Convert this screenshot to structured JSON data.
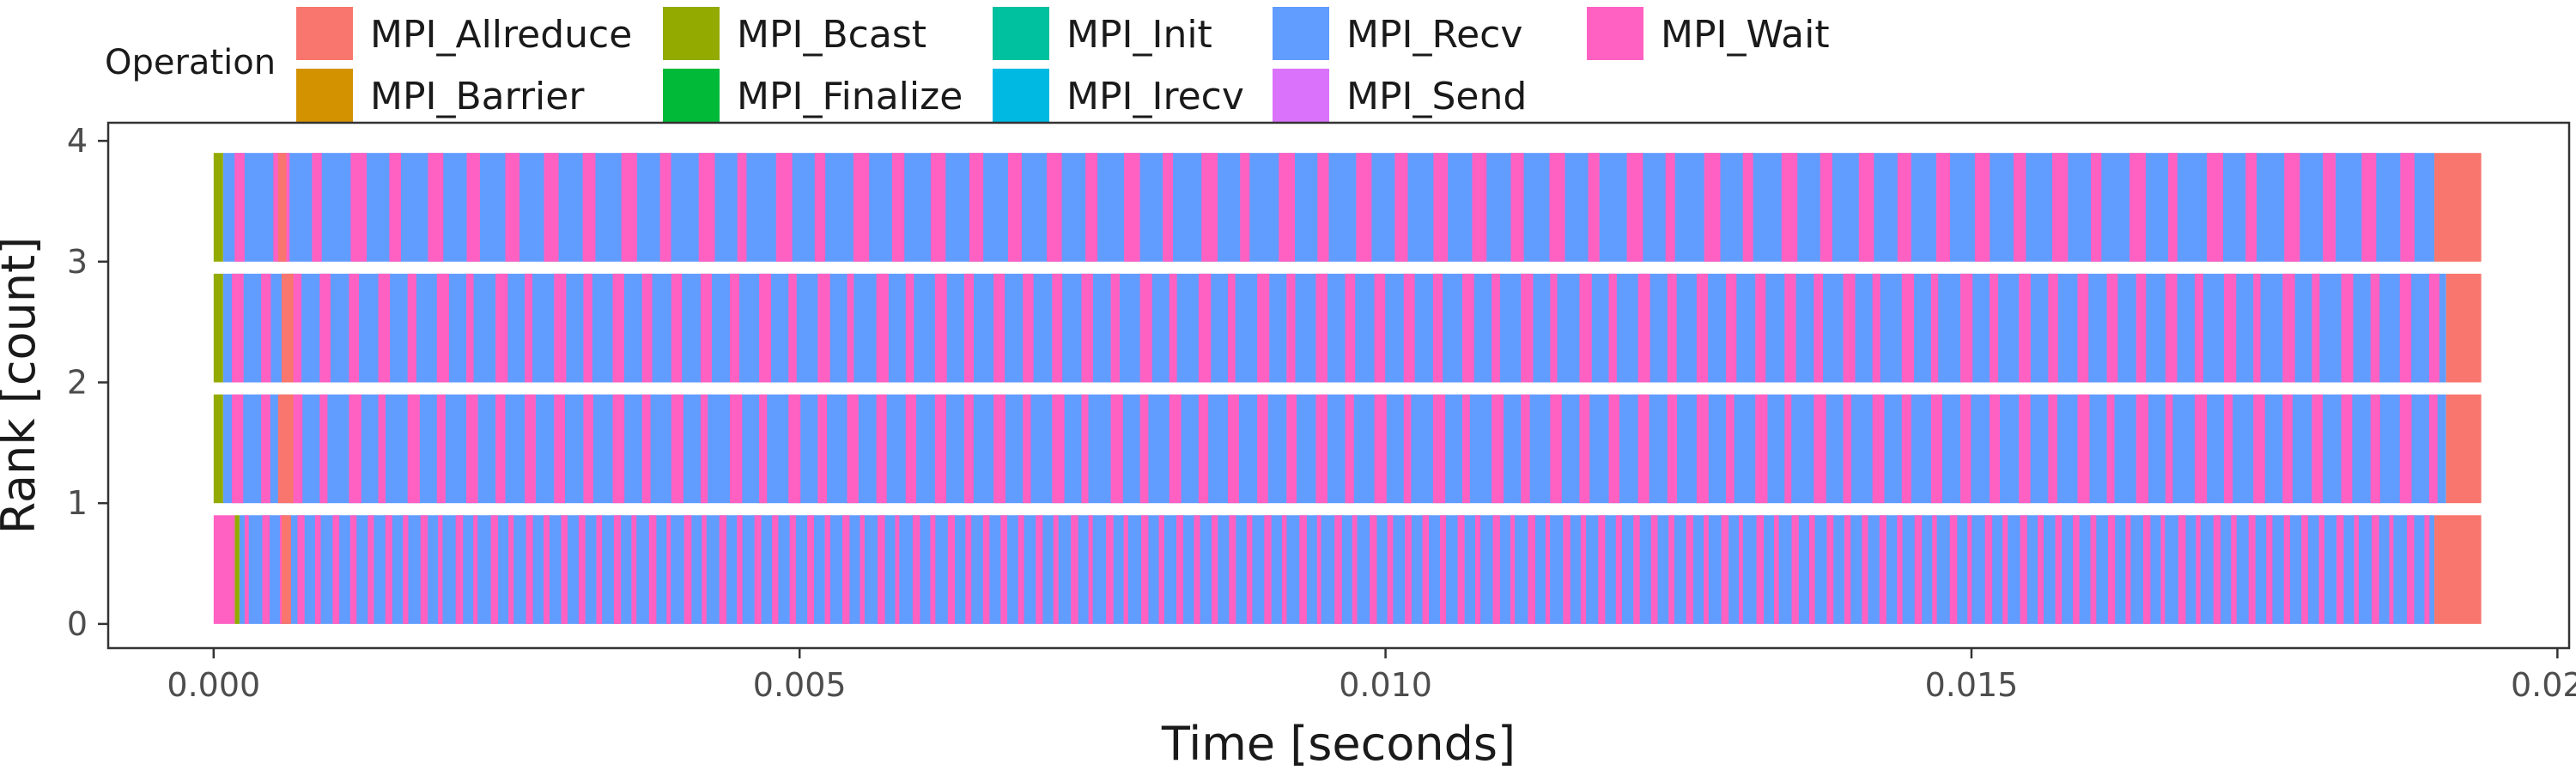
{
  "chart_data": {
    "type": "timeline",
    "xlabel": "Time [seconds]",
    "ylabel": "Rank [count]",
    "xlim": [
      -0.0009,
      0.0201
    ],
    "ylim": [
      -0.2,
      4.15
    ],
    "x_ticks": [
      {
        "value": 0.0,
        "label": "0.000"
      },
      {
        "value": 0.005,
        "label": "0.005"
      },
      {
        "value": 0.01,
        "label": "0.010"
      },
      {
        "value": 0.015,
        "label": "0.015"
      },
      {
        "value": 0.02,
        "label": "0.020"
      }
    ],
    "y_ticks": [
      {
        "value": 0,
        "label": "0"
      },
      {
        "value": 1,
        "label": "1"
      },
      {
        "value": 2,
        "label": "2"
      },
      {
        "value": 3,
        "label": "3"
      },
      {
        "value": 4,
        "label": "4"
      }
    ],
    "grid": false,
    "legend": {
      "title": "Operation",
      "position": "top",
      "entries": [
        {
          "name": "MPI_Allreduce",
          "color": "#F8766D"
        },
        {
          "name": "MPI_Barrier",
          "color": "#D39200"
        },
        {
          "name": "MPI_Bcast",
          "color": "#93AA00"
        },
        {
          "name": "MPI_Finalize",
          "color": "#00BA38"
        },
        {
          "name": "MPI_Init",
          "color": "#00C19F"
        },
        {
          "name": "MPI_Irecv",
          "color": "#00B9E3"
        },
        {
          "name": "MPI_Recv",
          "color": "#619CFF"
        },
        {
          "name": "MPI_Send",
          "color": "#DB72FB"
        },
        {
          "name": "MPI_Wait",
          "color": "#FF61C3"
        }
      ]
    },
    "ranks": [
      {
        "rank": 0,
        "start": 0.0,
        "end": 0.01935,
        "segments": [
          {
            "op": "MPI_Wait",
            "start": 0.0,
            "end": 0.00018
          },
          {
            "op": "MPI_Bcast",
            "start": 0.00018,
            "end": 0.00022
          },
          {
            "op": "MPI_Allreduce",
            "start": 0.00058,
            "end": 0.00066
          },
          {
            "op": "MPI_Allreduce",
            "start": 0.01895,
            "end": 0.01935
          }
        ],
        "body": {
          "op": "MPI_Recv",
          "start": 0.00022,
          "end": 0.01895,
          "stripe_op": "MPI_Wait",
          "stripe_period": 0.00015
        }
      },
      {
        "rank": 1,
        "start": 0.0,
        "end": 0.01935,
        "segments": [
          {
            "op": "MPI_Bcast",
            "start": 0.0,
            "end": 8e-05
          },
          {
            "op": "MPI_Allreduce",
            "start": 0.00055,
            "end": 0.00068
          },
          {
            "op": "MPI_Allreduce",
            "start": 0.01905,
            "end": 0.01935
          }
        ],
        "body": {
          "op": "MPI_Recv",
          "start": 8e-05,
          "end": 0.01905,
          "stripe_op": "MPI_Wait",
          "stripe_period": 0.00025
        }
      },
      {
        "rank": 2,
        "start": 0.0,
        "end": 0.01935,
        "segments": [
          {
            "op": "MPI_Bcast",
            "start": 0.0,
            "end": 8e-05
          },
          {
            "op": "MPI_Allreduce",
            "start": 0.00058,
            "end": 0.00068
          },
          {
            "op": "MPI_Allreduce",
            "start": 0.01905,
            "end": 0.01935
          }
        ],
        "body": {
          "op": "MPI_Recv",
          "start": 8e-05,
          "end": 0.01905,
          "stripe_op": "MPI_Wait",
          "stripe_period": 0.00025
        }
      },
      {
        "rank": 3,
        "start": 0.0,
        "end": 0.01935,
        "segments": [
          {
            "op": "MPI_Bcast",
            "start": 0.0,
            "end": 8e-05
          },
          {
            "op": "MPI_Allreduce",
            "start": 0.00055,
            "end": 0.00062
          },
          {
            "op": "MPI_Allreduce",
            "start": 0.01895,
            "end": 0.01935
          }
        ],
        "body": {
          "op": "MPI_Recv",
          "start": 8e-05,
          "end": 0.01895,
          "stripe_op": "MPI_Wait",
          "stripe_period": 0.00033
        }
      }
    ]
  }
}
